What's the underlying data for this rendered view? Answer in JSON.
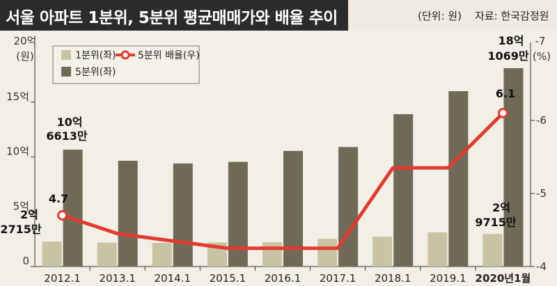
{
  "header": {
    "title": "서울 아파트 1분위, 5분위 평균매매가와 배율 추이",
    "unit": "(단위: 원)",
    "source": "자료: 한국감정원"
  },
  "chart_data": {
    "type": "bar",
    "categories": [
      "2012.1",
      "2013.1",
      "2014.1",
      "2015.1",
      "2016.1",
      "2017.1",
      "2018.1",
      "2019.1",
      "2020년1월"
    ],
    "series": [
      {
        "name": "1분위(좌)",
        "type": "bar",
        "axis": "left",
        "color": "#c9c3a4",
        "values": [
          2.27,
          2.18,
          2.16,
          2.2,
          2.22,
          2.52,
          2.72,
          3.12,
          2.97
        ]
      },
      {
        "name": "5분위(좌)",
        "type": "bar",
        "axis": "left",
        "color": "#6e6a57",
        "values": [
          10.66,
          9.65,
          9.4,
          9.55,
          10.55,
          10.9,
          13.9,
          16.0,
          18.1
        ]
      },
      {
        "name": "5분위 배율(우)",
        "type": "line",
        "axis": "right",
        "color": "#e23a2e",
        "values": [
          4.7,
          4.45,
          4.35,
          4.25,
          4.25,
          4.25,
          5.35,
          5.35,
          6.1
        ]
      }
    ],
    "left_axis": {
      "label_lines": [
        "20억",
        "(원)"
      ],
      "ticks": [
        "0",
        "5억",
        "10억",
        "15억"
      ],
      "range": [
        0,
        20
      ]
    },
    "right_axis": {
      "label_lines": [
        "7",
        "(%)"
      ],
      "ticks": [
        "4",
        "5",
        "6"
      ],
      "range": [
        4,
        7
      ]
    },
    "annotations": {
      "first_5q": [
        "10억",
        "6613만"
      ],
      "first_1q": [
        "2억",
        "2715만"
      ],
      "first_ratio": "4.7",
      "last_5q": [
        "18억",
        "1069만"
      ],
      "last_1q": [
        "2억",
        "9715만"
      ],
      "last_ratio": "6.1"
    },
    "grid": false,
    "legend": "top-left"
  }
}
